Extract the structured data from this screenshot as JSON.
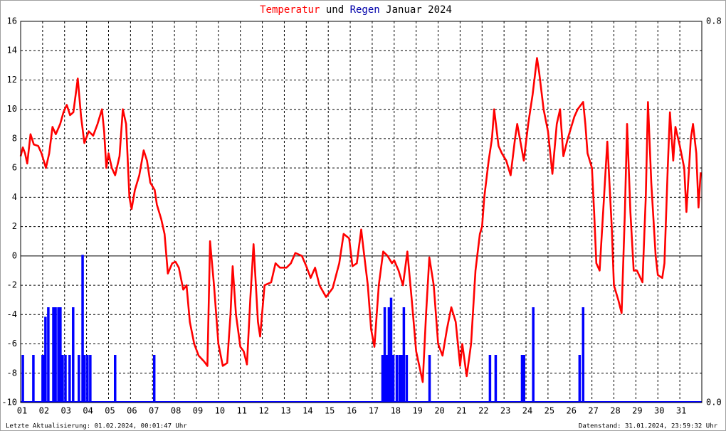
{
  "chart_data": {
    "type": "line",
    "title_connector": "und",
    "title_suffix": "Januar 2024",
    "footer_left": "Letzte Aktualisierung: 01.02.2024, 00:01:47 Uhr",
    "footer_right": "Datenstand: 31.01.2024, 23:59:32 Uhr",
    "xlim": [
      1,
      32
    ],
    "xticks": [
      {
        "value": 1,
        "label": "01"
      },
      {
        "value": 2,
        "label": "02"
      },
      {
        "value": 3,
        "label": "03"
      },
      {
        "value": 4,
        "label": "04"
      },
      {
        "value": 5,
        "label": "05"
      },
      {
        "value": 6,
        "label": "06"
      },
      {
        "value": 7,
        "label": "07"
      },
      {
        "value": 8,
        "label": "08"
      },
      {
        "value": 9,
        "label": "09"
      },
      {
        "value": 10,
        "label": "10"
      },
      {
        "value": 11,
        "label": "11"
      },
      {
        "value": 12,
        "label": "12"
      },
      {
        "value": 13,
        "label": "13"
      },
      {
        "value": 14,
        "label": "14"
      },
      {
        "value": 15,
        "label": "15"
      },
      {
        "value": 16,
        "label": "16"
      },
      {
        "value": 17,
        "label": "17"
      },
      {
        "value": 18,
        "label": "18"
      },
      {
        "value": 19,
        "label": "19"
      },
      {
        "value": 20,
        "label": "20"
      },
      {
        "value": 21,
        "label": "21"
      },
      {
        "value": 22,
        "label": "22"
      },
      {
        "value": 23,
        "label": "23"
      },
      {
        "value": 24,
        "label": "24"
      },
      {
        "value": 25,
        "label": "25"
      },
      {
        "value": 26,
        "label": "26"
      },
      {
        "value": 27,
        "label": "27"
      },
      {
        "value": 28,
        "label": "28"
      },
      {
        "value": 29,
        "label": "29"
      },
      {
        "value": 30,
        "label": "30"
      },
      {
        "value": 31,
        "label": "31"
      }
    ],
    "ylim": [
      -10,
      16
    ],
    "yticks": [
      -10,
      -8,
      -6,
      -4,
      -2,
      0,
      2,
      4,
      6,
      8,
      10,
      12,
      14,
      16
    ],
    "y2lim": [
      0,
      0.8
    ],
    "y2ticks": [
      {
        "value": 0,
        "label": "0.0"
      },
      {
        "value": 0.8,
        "label": "0.8"
      }
    ],
    "grid": true,
    "series": [
      {
        "name": "Temperatur",
        "color": "#ff0000",
        "type": "line",
        "x": [
          1.0,
          1.1,
          1.2,
          1.3,
          1.45,
          1.6,
          1.8,
          1.95,
          2.15,
          2.3,
          2.45,
          2.6,
          2.8,
          2.95,
          3.1,
          3.25,
          3.4,
          3.6,
          3.75,
          3.9,
          4.1,
          4.3,
          4.5,
          4.7,
          4.8,
          4.9,
          5.0,
          5.15,
          5.3,
          5.5,
          5.65,
          5.8,
          5.95,
          6.05,
          6.2,
          6.4,
          6.6,
          6.75,
          6.9,
          7.1,
          7.2,
          7.4,
          7.55,
          7.7,
          7.9,
          8.05,
          8.2,
          8.4,
          8.55,
          8.7,
          8.9,
          9.1,
          9.35,
          9.5,
          9.62,
          9.8,
          10.0,
          10.2,
          10.4,
          10.55,
          10.65,
          10.8,
          11.0,
          11.15,
          11.3,
          11.45,
          11.6,
          11.8,
          11.9,
          12.1,
          12.4,
          12.6,
          12.8,
          13.1,
          13.3,
          13.5,
          13.8,
          14.0,
          14.2,
          14.4,
          14.6,
          14.9,
          15.2,
          15.5,
          15.7,
          15.95,
          16.1,
          16.3,
          16.5,
          16.6,
          16.8,
          16.95,
          17.1,
          17.3,
          17.5,
          17.7,
          17.9,
          18.0,
          18.2,
          18.4,
          18.6,
          18.8,
          19.0,
          19.3,
          19.45,
          19.6,
          19.8,
          20.0,
          20.2,
          20.4,
          20.6,
          20.8,
          21.0,
          21.1,
          21.3,
          21.5,
          21.7,
          21.9,
          22.0,
          22.1,
          22.3,
          22.45,
          22.55,
          22.75,
          22.9,
          23.1,
          23.3,
          23.5,
          23.6,
          23.9,
          24.1,
          24.3,
          24.5,
          24.6,
          24.8,
          25.0,
          25.2,
          25.4,
          25.55,
          25.7,
          25.9,
          26.0,
          26.2,
          26.35,
          26.6,
          26.7,
          26.8,
          27.0,
          27.1,
          27.2,
          27.35,
          27.55,
          27.7,
          27.9,
          28.0,
          28.2,
          28.35,
          28.5,
          28.6,
          28.75,
          28.9,
          29.05,
          29.3,
          29.45,
          29.55,
          29.7,
          29.9,
          30.0,
          30.2,
          30.3,
          30.45,
          30.55,
          30.7,
          30.8,
          31.0,
          31.2,
          31.3,
          31.5,
          31.6,
          31.75,
          31.85,
          31.95
        ],
        "values": [
          6.8,
          7.4,
          7.0,
          6.3,
          8.3,
          7.6,
          7.5,
          7.0,
          6.0,
          7.0,
          8.8,
          8.3,
          9.0,
          9.8,
          10.3,
          9.6,
          9.8,
          12.1,
          9.5,
          7.7,
          8.5,
          8.2,
          9.0,
          10.0,
          8.5,
          6.0,
          7.0,
          6.0,
          5.5,
          6.8,
          10.0,
          9.0,
          4.0,
          3.2,
          4.5,
          5.5,
          7.2,
          6.5,
          5.0,
          4.5,
          3.5,
          2.5,
          1.5,
          -1.2,
          -0.5,
          -0.4,
          -0.8,
          -2.3,
          -2.0,
          -4.5,
          -6.0,
          -6.8,
          -7.2,
          -7.5,
          1.0,
          -2.0,
          -6.0,
          -7.5,
          -7.3,
          -4.0,
          -0.7,
          -4.0,
          -6.2,
          -6.5,
          -7.4,
          -3.0,
          0.8,
          -4.5,
          -5.5,
          -2.0,
          -1.8,
          -0.5,
          -0.8,
          -0.8,
          -0.5,
          0.2,
          0.0,
          -0.7,
          -1.5,
          -0.8,
          -2.0,
          -2.8,
          -2.2,
          -0.5,
          1.5,
          1.2,
          -0.7,
          -0.5,
          1.8,
          0.5,
          -2.0,
          -5.0,
          -6.2,
          -2.0,
          0.3,
          0.0,
          -0.5,
          -0.3,
          -1.0,
          -2.0,
          0.3,
          -3.0,
          -6.5,
          -8.6,
          -4.0,
          -0.1,
          -2.0,
          -6.0,
          -6.8,
          -5.0,
          -3.5,
          -4.5,
          -7.5,
          -6.0,
          -8.2,
          -6.0,
          -1.0,
          1.5,
          2.0,
          4.0,
          6.5,
          8.0,
          10.0,
          7.5,
          7.0,
          6.5,
          5.5,
          8.0,
          9.0,
          6.5,
          9.0,
          11.0,
          13.5,
          12.5,
          10.0,
          8.5,
          5.6,
          9.0,
          10.0,
          6.8,
          8.0,
          8.5,
          9.5,
          10.0,
          10.5,
          9.0,
          7.0,
          6.0,
          3.0,
          -0.5,
          -1.0,
          4.0,
          7.8,
          2.0,
          -2.0,
          -3.0,
          -3.9,
          3.0,
          9.0,
          3.0,
          -1.0,
          -1.0,
          -1.8,
          4.0,
          10.5,
          5.0,
          0.0,
          -1.3,
          -1.5,
          -0.5,
          6.0,
          9.8,
          6.5,
          8.8,
          7.5,
          6.0,
          3.0,
          8.0,
          9.0,
          7.0,
          3.3,
          5.7
        ]
      },
      {
        "name": "Regen",
        "color": "#0000ff",
        "type": "bar",
        "axis": "y2",
        "x": [
          1.1,
          1.58,
          2.0,
          2.07,
          2.13,
          2.26,
          2.49,
          2.59,
          2.72,
          2.81,
          2.91,
          3.04,
          3.23,
          3.39,
          3.65,
          3.82,
          3.91,
          4.04,
          4.17,
          5.3,
          7.08,
          17.47,
          17.57,
          17.67,
          17.76,
          17.86,
          17.96,
          18.12,
          18.25,
          18.35,
          18.44,
          18.57,
          19.61,
          22.36,
          22.62,
          23.82,
          23.91,
          24.33,
          26.44,
          26.6
        ],
        "values": [
          0.1,
          0.1,
          0.1,
          0.1,
          0.18,
          0.2,
          0.2,
          0.2,
          0.2,
          0.2,
          0.1,
          0.1,
          0.1,
          0.2,
          0.1,
          0.31,
          0.1,
          0.1,
          0.1,
          0.1,
          0.1,
          0.1,
          0.2,
          0.1,
          0.2,
          0.22,
          0.1,
          0.1,
          0.1,
          0.1,
          0.2,
          0.1,
          0.1,
          0.1,
          0.1,
          0.1,
          0.1,
          0.2,
          0.1,
          0.2
        ]
      }
    ]
  }
}
